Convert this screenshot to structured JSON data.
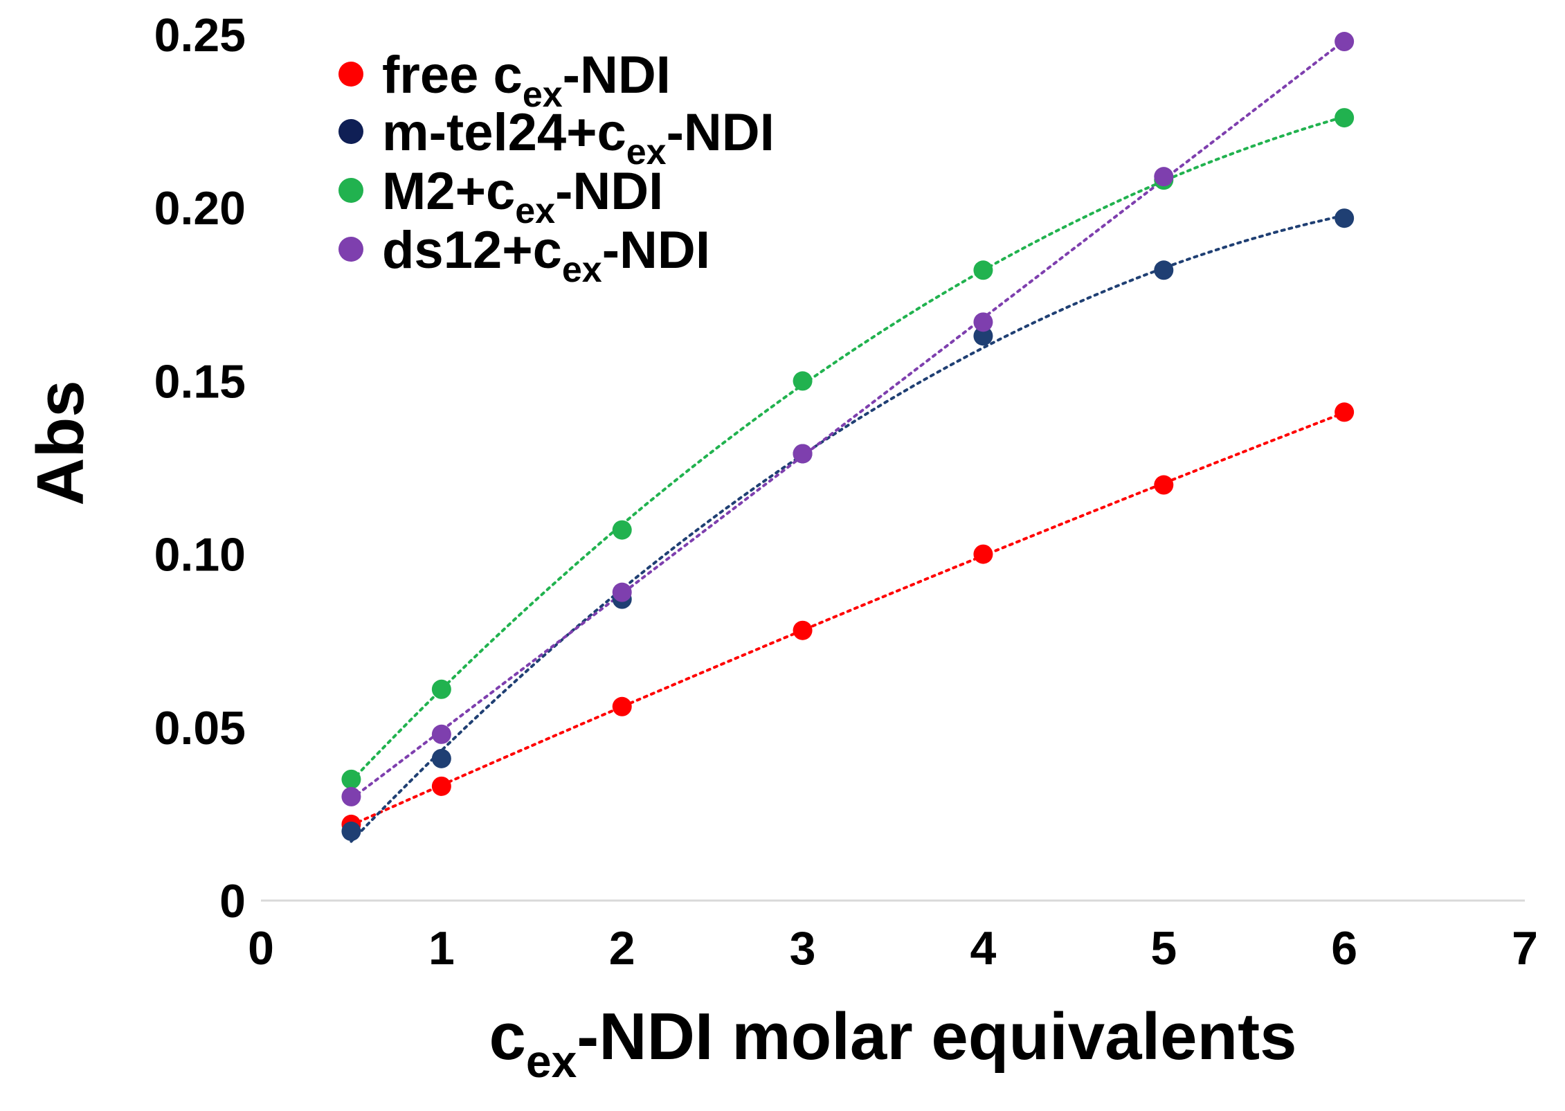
{
  "chart_data": {
    "type": "scatter",
    "title": "",
    "xlabel": {
      "main": "c",
      "sub": "ex",
      "rest": "-NDI molar equivalents"
    },
    "ylabel": "Abs",
    "xlim": [
      0,
      7
    ],
    "ylim": [
      0,
      0.25
    ],
    "x_ticks": [
      0,
      1,
      2,
      3,
      4,
      5,
      6,
      7
    ],
    "x_tick_labels": [
      "0",
      "1",
      "2",
      "3",
      "4",
      "5",
      "6",
      "7"
    ],
    "y_ticks": [
      0,
      0.05,
      0.1,
      0.15,
      0.2,
      0.25
    ],
    "y_tick_labels": [
      "0",
      "0.05",
      "0.10",
      "0.15",
      "0.20",
      "0.25"
    ],
    "grid": false,
    "legend_position": "top-left",
    "trendline": "dotted polynomial",
    "x": [
      0.5,
      1,
      2,
      3,
      4,
      5,
      6
    ],
    "series": [
      {
        "name": "free c_ex-NDI",
        "label_pre": "free c",
        "label_sub": "ex",
        "label_post": "-NDI",
        "color": "#ff0000",
        "values": [
          0.022,
          0.033,
          0.056,
          0.078,
          0.1,
          0.12,
          0.141
        ]
      },
      {
        "name": "m-tel24+c_ex-NDI",
        "label_pre": "m-tel24+c",
        "label_sub": "ex",
        "label_post": "-NDI",
        "color": "#1f3f73",
        "values": [
          0.02,
          0.041,
          0.087,
          0.129,
          0.163,
          0.182,
          0.197
        ]
      },
      {
        "name": "M2+c_ex-NDI",
        "label_pre": "M2+c",
        "label_sub": "ex",
        "label_post": "-NDI",
        "color": "#21b24f",
        "values": [
          0.035,
          0.061,
          0.107,
          0.15,
          0.182,
          0.208,
          0.226
        ]
      },
      {
        "name": "ds12+c_ex-NDI",
        "label_pre": "ds12+c",
        "label_sub": "ex",
        "label_post": "-NDI",
        "color": "#7e3fae",
        "values": [
          0.03,
          0.048,
          0.089,
          0.129,
          0.167,
          0.209,
          0.248
        ]
      }
    ],
    "legend_marker_colors": [
      "#ff0000",
      "#0f1f55",
      "#21b24f",
      "#7e3fae"
    ]
  }
}
